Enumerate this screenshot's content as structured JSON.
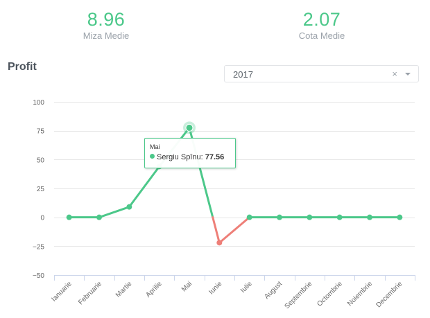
{
  "stats": {
    "miza": {
      "value": "8.96",
      "label": "Miza Medie"
    },
    "cota": {
      "value": "2.07",
      "label": "Cota Medie"
    }
  },
  "section": {
    "title": "Profit"
  },
  "year_select": {
    "value": "2017",
    "clear_symbol": "×",
    "arrow_icon": "caret-down-icon"
  },
  "tooltip": {
    "header": "Mai",
    "series_name": "Sergiu Spînu",
    "separator": ":",
    "value": "77.56"
  },
  "colors": {
    "positive": "#4cc88a",
    "negative": "#ee7f78",
    "grid": "#e6e6e6",
    "text": "#666666"
  },
  "chart_data": {
    "type": "line",
    "categories": [
      "Ianuarie",
      "Februarie",
      "Martie",
      "Aprilie",
      "Mai",
      "Iunie",
      "Iulie",
      "August",
      "Septembrie",
      "Octombrie",
      "Noiembrie",
      "Decembrie"
    ],
    "series": [
      {
        "name": "Sergiu Spînu",
        "values": [
          0,
          0,
          9,
          44,
          77.56,
          -22,
          0,
          0,
          0,
          0,
          0,
          0
        ]
      }
    ],
    "yticks": [
      100,
      75,
      50,
      25,
      0,
      -25,
      -50
    ],
    "ylim": [
      -50,
      100
    ],
    "grid": true,
    "highlighted_index": 4
  }
}
